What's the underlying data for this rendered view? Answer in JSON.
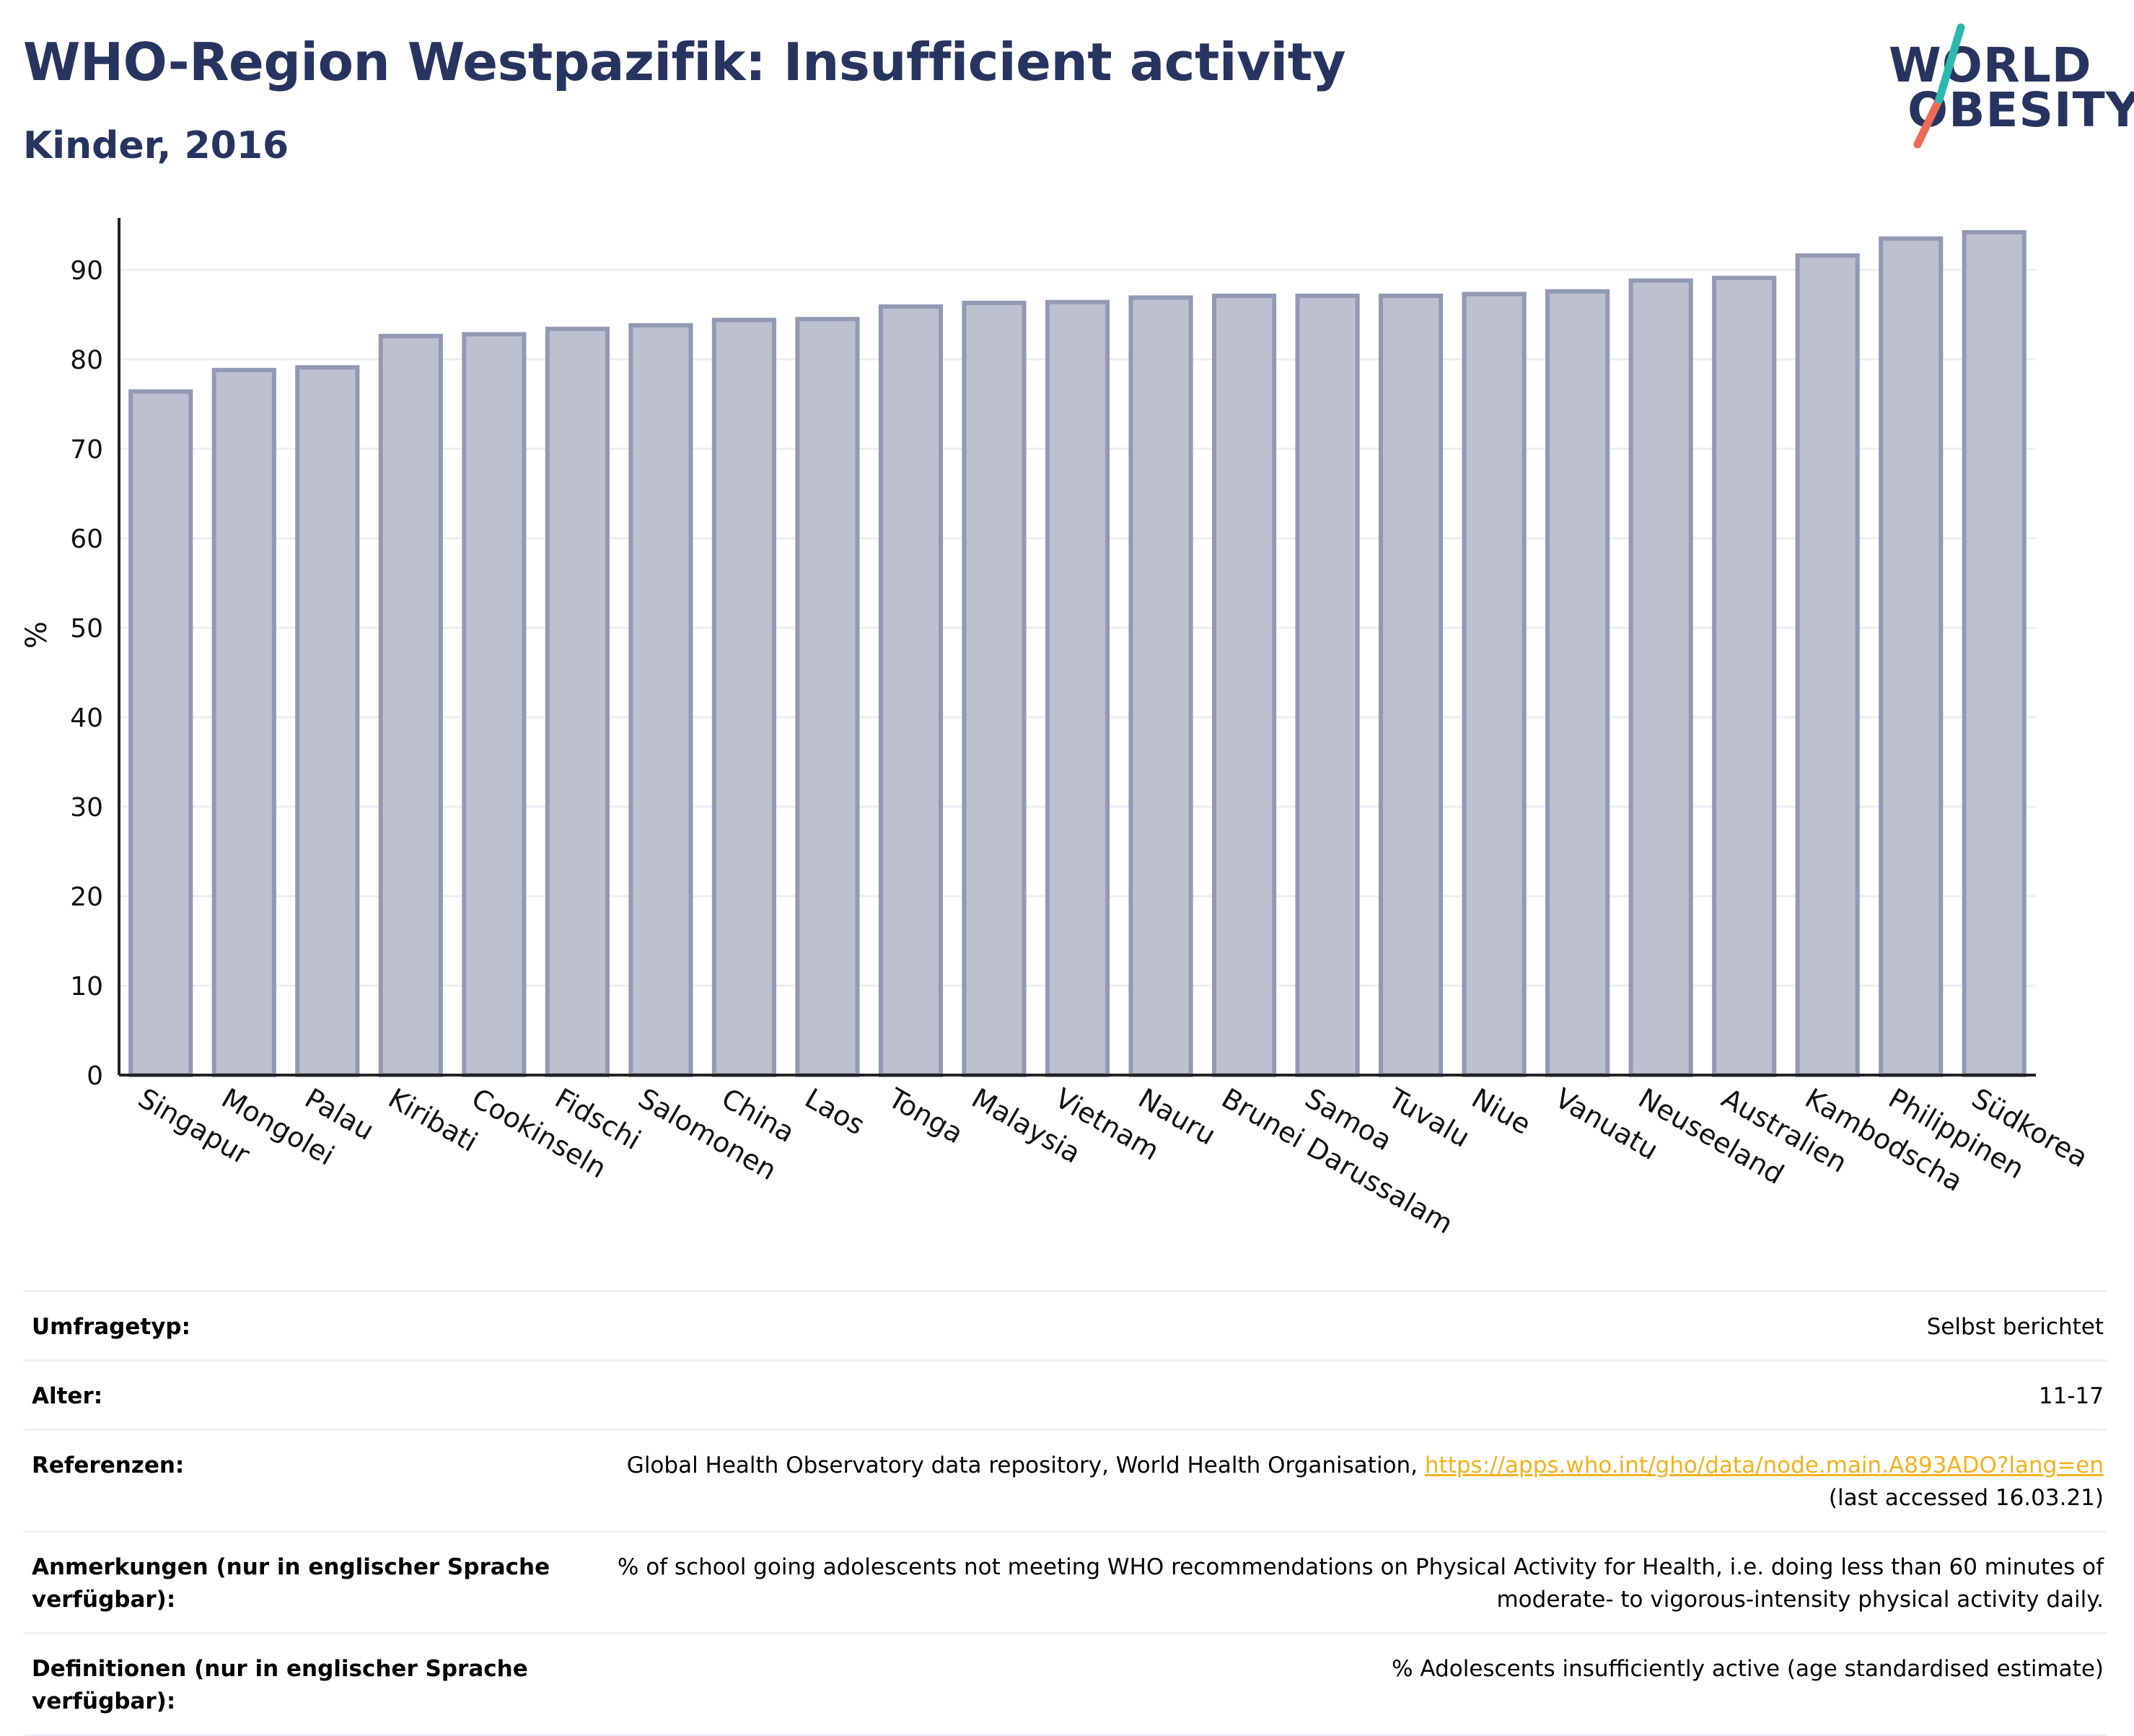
{
  "header": {
    "title": "WHO-Region Westpazifik: Insufficient activity",
    "subtitle": "Kinder, 2016"
  },
  "logo": {
    "line1": "WORLD",
    "line2": "OBESITY",
    "slash_colors": [
      "#2bb8b0",
      "#ec6b56"
    ]
  },
  "colors": {
    "bar_fill": "#bdc0cf",
    "bar_stroke": "#9299b3",
    "axis": "#222222",
    "grid": "#eceef4",
    "text_dark": "#283460",
    "link": "#f2b21f"
  },
  "chart_data": {
    "type": "bar",
    "title": "WHO-Region Westpazifik: Insufficient activity",
    "subtitle": "Kinder, 2016",
    "xlabel": "",
    "ylabel": "%",
    "ylim": [
      0,
      95
    ],
    "yticks": [
      0,
      10,
      20,
      30,
      40,
      50,
      60,
      70,
      80,
      90
    ],
    "grid": true,
    "categories": [
      "Singapur",
      "Mongolei",
      "Palau",
      "Kiribati",
      "Cookinseln",
      "Fidschi",
      "Salomonen",
      "China",
      "Laos",
      "Tonga",
      "Malaysia",
      "Vietnam",
      "Nauru",
      "Brunei Darussalam",
      "Samoa",
      "Tuvalu",
      "Niue",
      "Vanuatu",
      "Neuseeland",
      "Australien",
      "Kambodscha",
      "Philippinen",
      "Südkorea"
    ],
    "values": [
      76.4,
      78.8,
      79.1,
      82.6,
      82.8,
      83.4,
      83.8,
      84.4,
      84.5,
      85.9,
      86.3,
      86.4,
      86.9,
      87.1,
      87.1,
      87.1,
      87.3,
      87.6,
      88.8,
      89.1,
      91.6,
      93.5,
      94.2
    ]
  },
  "info": [
    {
      "label": "Umfragetyp:",
      "value": "Selbst berichtet"
    },
    {
      "label": "Alter:",
      "value": "11-17"
    },
    {
      "label": "Referenzen:",
      "value_prefix": "Global Health Observatory data repository, World Health Organisation, ",
      "link": "https://apps.who.int/gho/data/node.main.A893ADO?lang=en",
      "value_suffix": "(last accessed 16.03.21)"
    },
    {
      "label": "Anmerkungen (nur in englischer Sprache verfügbar):",
      "value": "% of school going adolescents not meeting WHO recommendations on Physical Activity for Health, i.e. doing less than 60 minutes of moderate- to vigorous-intensity physical activity daily."
    },
    {
      "label": "Definitionen (nur in englischer Sprache verfügbar):",
      "value": "% Adolescents insufficiently active (age standardised estimate)"
    }
  ]
}
